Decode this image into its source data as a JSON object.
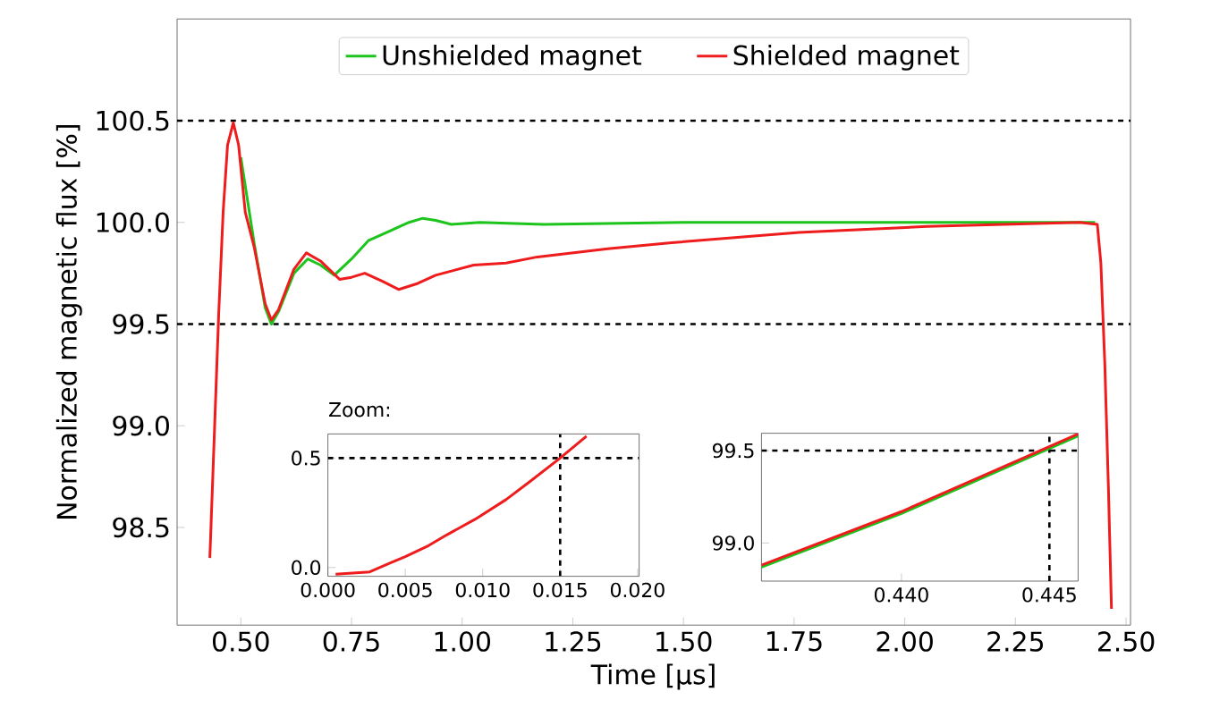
{
  "chart_data": [
    {
      "type": "line",
      "xlabel": "Time [µs]",
      "ylabel": "Normalized magnetic flux [%]",
      "xlim": [
        0.356,
        2.51
      ],
      "ylim": [
        98.02,
        101.0
      ],
      "xticks": [
        {
          "value": 0.5,
          "label": "0.50"
        },
        {
          "value": 0.75,
          "label": "0.75"
        },
        {
          "value": 1.0,
          "label": "1.00"
        },
        {
          "value": 1.25,
          "label": "1.25"
        },
        {
          "value": 1.5,
          "label": "1.50"
        },
        {
          "value": 1.75,
          "label": "1.75"
        },
        {
          "value": 2.0,
          "label": "2.00"
        },
        {
          "value": 2.25,
          "label": "2.25"
        },
        {
          "value": 2.5,
          "label": "2.50"
        }
      ],
      "yticks": [
        {
          "value": 98.5,
          "label": "98.5"
        },
        {
          "value": 99.0,
          "label": "99.0"
        },
        {
          "value": 99.5,
          "label": "99.5"
        },
        {
          "value": 100.0,
          "label": "100.0"
        },
        {
          "value": 100.5,
          "label": "100.5"
        }
      ],
      "legend": "top",
      "grid": false,
      "ref_lines": [
        {
          "axis": "y",
          "value": 100.5,
          "color": "#000000",
          "line_style": "dashed"
        },
        {
          "axis": "y",
          "value": 99.5,
          "color": "#000000",
          "line_style": "dashed"
        }
      ],
      "series": [
        {
          "name": "Unshielded magnet",
          "color": "#1cc41c",
          "x": [
            0.5,
            0.53,
            0.555,
            0.569,
            0.585,
            0.62,
            0.651,
            0.68,
            0.711,
            0.75,
            0.788,
            0.839,
            0.88,
            0.911,
            0.94,
            0.976,
            1.04,
            1.184,
            1.5,
            2.0,
            2.43
          ],
          "values": [
            100.32,
            99.9,
            99.58,
            99.5,
            99.56,
            99.75,
            99.82,
            99.79,
            99.74,
            99.82,
            99.91,
            99.96,
            100.0,
            100.02,
            100.01,
            99.99,
            100.0,
            99.99,
            100.0,
            100.0,
            100.0
          ]
        },
        {
          "name": "Shielded magnet",
          "color": "#ee1c1c",
          "x": [
            0.43,
            0.44,
            0.45,
            0.46,
            0.47,
            0.483,
            0.495,
            0.51,
            0.53,
            0.555,
            0.569,
            0.585,
            0.62,
            0.648,
            0.68,
            0.723,
            0.75,
            0.78,
            0.82,
            0.857,
            0.9,
            0.94,
            1.026,
            1.099,
            1.17,
            1.329,
            1.473,
            1.761,
            2.05,
            2.395,
            2.435,
            2.443,
            2.452,
            2.46,
            2.467
          ],
          "values": [
            98.35,
            98.95,
            99.55,
            100.05,
            100.38,
            100.49,
            100.38,
            100.05,
            99.88,
            99.6,
            99.52,
            99.57,
            99.77,
            99.85,
            99.81,
            99.72,
            99.73,
            99.75,
            99.71,
            99.67,
            99.7,
            99.74,
            99.79,
            99.8,
            99.83,
            99.87,
            99.9,
            99.95,
            99.98,
            100.0,
            99.99,
            99.8,
            99.3,
            98.7,
            98.1
          ]
        }
      ]
    },
    {
      "type": "line",
      "title": "Zoom:",
      "xlim": [
        0,
        0.0201
      ],
      "ylim": [
        -0.04,
        0.61
      ],
      "xticks": [
        {
          "value": 0,
          "label": "0.000"
        },
        {
          "value": 0.005,
          "label": "0.005"
        },
        {
          "value": 0.01,
          "label": "0.010"
        },
        {
          "value": 0.015,
          "label": "0.015"
        },
        {
          "value": 0.02,
          "label": "0.020"
        }
      ],
      "yticks": [
        {
          "value": 0,
          "label": "0.0"
        },
        {
          "value": 0.5,
          "label": "0.5"
        }
      ],
      "ref_lines": [
        {
          "axis": "y",
          "value": 0.5,
          "color": "#000000",
          "line_style": "dashed"
        },
        {
          "axis": "x",
          "value": 0.015,
          "color": "#000000",
          "line_style": "dashed"
        }
      ],
      "series": [
        {
          "color": "#ee1c1c",
          "x": [
            0.0005,
            0.0027,
            0.004,
            0.005,
            0.0065,
            0.0077,
            0.0095,
            0.0115,
            0.013,
            0.015,
            0.0167
          ],
          "values": [
            -0.03,
            -0.02,
            0.02,
            0.05,
            0.1,
            0.15,
            0.22,
            0.31,
            0.39,
            0.5,
            0.6
          ]
        }
      ]
    },
    {
      "type": "line",
      "xlim": [
        0.43527,
        0.44597
      ],
      "ylim": [
        98.794,
        99.594
      ],
      "xticks": [
        {
          "value": 0.44,
          "label": "0.440"
        },
        {
          "value": 0.445,
          "label": "0.445"
        }
      ],
      "yticks": [
        {
          "value": 99.0,
          "label": "99.0"
        },
        {
          "value": 99.5,
          "label": "99.5"
        }
      ],
      "ref_lines": [
        {
          "axis": "y",
          "value": 99.5,
          "color": "#000000",
          "line_style": "dashed"
        },
        {
          "axis": "x",
          "value": 0.445,
          "color": "#000000",
          "line_style": "dashed"
        }
      ],
      "series": [
        {
          "color": "#1cc41c",
          "x": [
            0.43527,
            0.44,
            0.44597
          ],
          "values": [
            98.87,
            99.16,
            99.58
          ]
        },
        {
          "color": "#ee1c1c",
          "x": [
            0.43527,
            0.44,
            0.44597
          ],
          "values": [
            98.88,
            99.17,
            99.59
          ]
        }
      ]
    }
  ]
}
